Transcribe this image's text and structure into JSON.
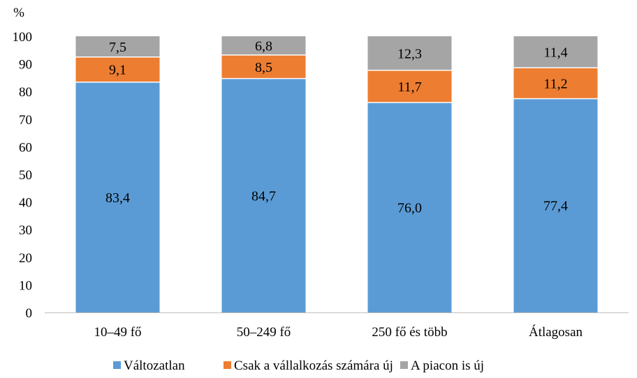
{
  "chart_data": {
    "type": "bar",
    "stacked": true,
    "title": "",
    "xlabel": "",
    "ylabel": "%",
    "ylim": [
      0,
      100
    ],
    "yticks": [
      0,
      10,
      20,
      30,
      40,
      50,
      60,
      70,
      80,
      90,
      100
    ],
    "grid": false,
    "legend_position": "bottom",
    "categories": [
      "10–49 fő",
      "50–249 fő",
      "250 fő és több",
      "Átlagosan"
    ],
    "series": [
      {
        "name": "Változatlan",
        "color": "#5b9bd5",
        "values": [
          83.4,
          84.7,
          76.0,
          77.4
        ],
        "labels": [
          "83,4",
          "84,7",
          "76,0",
          "77,4"
        ]
      },
      {
        "name": "Csak a vállalkozás számára új",
        "color": "#ed7d31",
        "values": [
          9.1,
          8.5,
          11.7,
          11.2
        ],
        "labels": [
          "9,1",
          "8,5",
          "11,7",
          "11,2"
        ]
      },
      {
        "name": "A piacon is új",
        "color": "#a5a5a5",
        "values": [
          7.5,
          6.8,
          12.3,
          11.4
        ],
        "labels": [
          "7,5",
          "6,8",
          "12,3",
          "11,4"
        ]
      }
    ]
  }
}
